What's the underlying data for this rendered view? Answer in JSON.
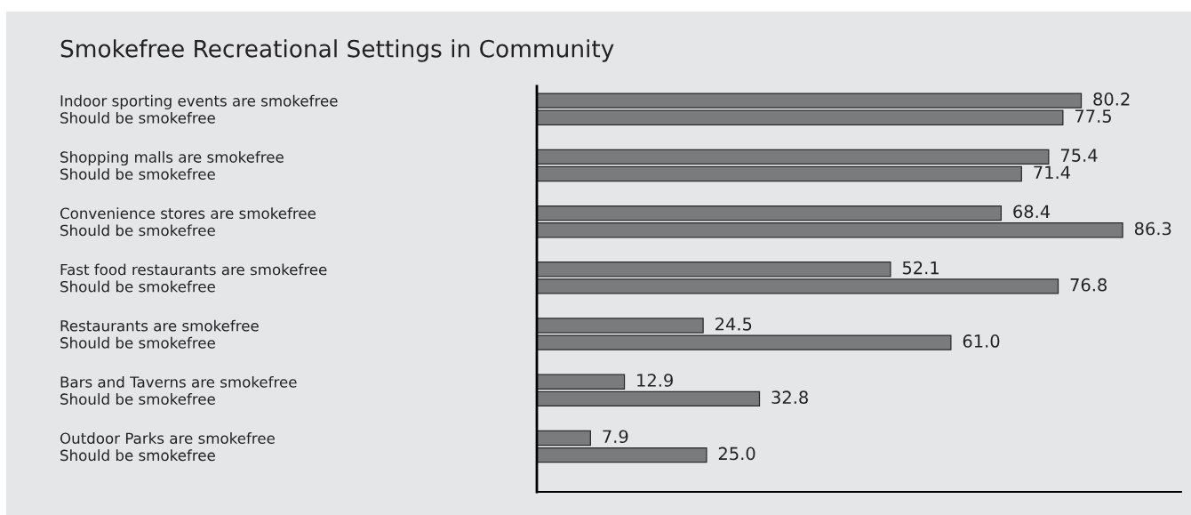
{
  "chart_data": {
    "type": "bar",
    "orientation": "horizontal",
    "title": "Smokefree Recreational Settings in Community",
    "categories": [
      "Indoor sporting events are smokefree",
      "Should be smokefree",
      "Shopping malls are smokefree",
      "Should be smokefree",
      "Convenience stores are smokefree",
      "Should be smokefree",
      "Fast food restaurants are smokefree",
      "Should be smokefree",
      "Restaurants are smokefree",
      "Should be smokefree",
      "Bars and Taverns are smokefree",
      "Should be smokefree",
      "Outdoor Parks are smokefree",
      "Should be smokefree"
    ],
    "values": [
      80.2,
      77.5,
      75.4,
      71.4,
      68.4,
      86.3,
      52.1,
      76.8,
      24.5,
      61.0,
      12.9,
      32.8,
      7.9,
      25.0
    ],
    "value_labels": [
      "80.2",
      "77.5",
      "75.4",
      "71.4",
      "68.4",
      "86.3",
      "52.1",
      "76.8",
      "24.5",
      "61.0",
      "12.9",
      "32.8",
      "7.9",
      "25.0"
    ],
    "color": "#7a7b7d",
    "tick_labels": "y"
  }
}
